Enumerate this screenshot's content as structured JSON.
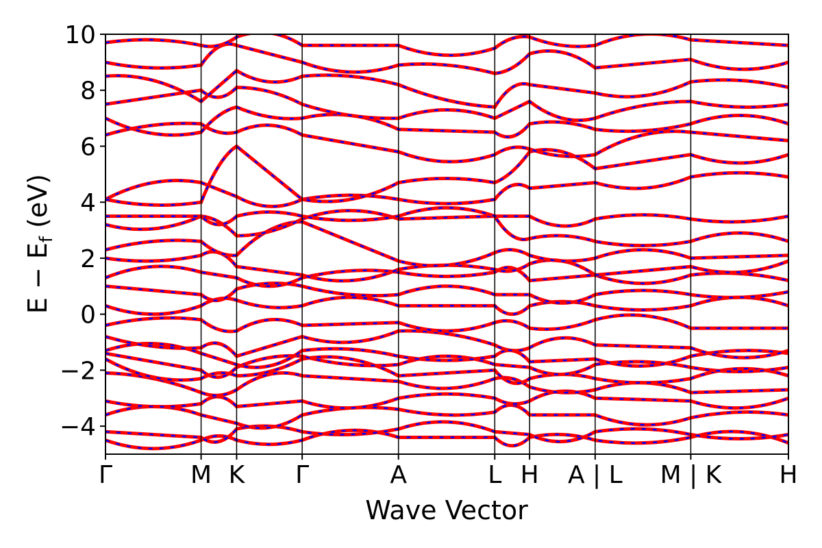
{
  "chart_data": {
    "type": "line",
    "title": "",
    "xlabel": "Wave Vector",
    "ylabel_main": "E − E",
    "ylabel_sub": "f",
    "ylabel_unit": " (eV)",
    "ylim": [
      -5,
      10
    ],
    "yticks": [
      -4,
      -2,
      0,
      2,
      4,
      6,
      8,
      10
    ],
    "ytick_labels": [
      "−4",
      "−2",
      "0",
      "2",
      "4",
      "6",
      "8",
      "10"
    ],
    "xlim": [
      0,
      1
    ],
    "kpoints": [
      {
        "label": "Γ",
        "x": 0.0
      },
      {
        "label": "M",
        "x": 0.14
      },
      {
        "label": "K",
        "x": 0.192
      },
      {
        "label": "Γ",
        "x": 0.288
      },
      {
        "label": "A",
        "x": 0.429
      },
      {
        "label": "L",
        "x": 0.57
      },
      {
        "label": "H",
        "x": 0.621
      },
      {
        "label": "A | L",
        "x": 0.717
      },
      {
        "label": "M | K",
        "x": 0.857
      },
      {
        "label": "H",
        "x": 1.0
      }
    ],
    "colors": {
      "primary": "#ff0000",
      "secondary": "#0000ff",
      "frame": "#000000"
    },
    "series_style": "solid red bands overlaid with dashed blue bands",
    "series": [
      {
        "y": [
          -4.5,
          -4.5,
          -4.5,
          -4.5,
          -4.4,
          -4.4,
          -4.4,
          -4.5,
          -4.4,
          -4.6
        ]
      },
      {
        "y": [
          -4.2,
          -4.4,
          -4.1,
          -4.2,
          -4.1,
          -4.2,
          -4.3,
          -4.2,
          -4.3,
          -4.3
        ]
      },
      {
        "y": [
          -3.6,
          -3.6,
          -3.9,
          -3.6,
          -3.4,
          -3.5,
          -3.6,
          -3.6,
          -3.7,
          -3.6
        ]
      },
      {
        "y": [
          -3.1,
          -3.2,
          -3.3,
          -3.1,
          -3.0,
          -3.0,
          -3.1,
          -3.0,
          -3.1,
          -3.0
        ]
      },
      {
        "y": [
          -2.1,
          -2.8,
          -2.7,
          -2.2,
          -2.4,
          -2.3,
          -2.6,
          -2.7,
          -2.8,
          -2.7
        ]
      },
      {
        "y": [
          -1.6,
          -2.3,
          -2.2,
          -1.6,
          -2.2,
          -2.0,
          -2.3,
          -2.3,
          -2.3,
          -2.2
        ]
      },
      {
        "y": [
          -1.4,
          -2.0,
          -1.9,
          -1.5,
          -1.8,
          -1.8,
          -1.9,
          -1.8,
          -1.9,
          -1.9
        ]
      },
      {
        "y": [
          -1.3,
          -1.4,
          -1.8,
          -1.3,
          -1.5,
          -1.5,
          -1.7,
          -1.6,
          -1.5,
          -1.4
        ]
      },
      {
        "y": [
          -0.8,
          -1.2,
          -1.5,
          -0.8,
          -0.6,
          -1.1,
          -1.2,
          -1.1,
          -1.2,
          -1.3
        ]
      },
      {
        "y": [
          -0.4,
          -0.2,
          -0.6,
          -0.4,
          -0.3,
          -0.3,
          -0.5,
          -0.2,
          -0.5,
          -0.5
        ]
      },
      {
        "y": [
          0.3,
          0.3,
          0.5,
          0.3,
          0.3,
          0.3,
          0.3,
          0.3,
          0.3,
          0.3
        ]
      },
      {
        "y": [
          1.0,
          0.7,
          0.9,
          1.0,
          0.7,
          0.7,
          0.7,
          0.7,
          0.7,
          0.8
        ]
      },
      {
        "y": [
          1.3,
          1.5,
          1.3,
          1.3,
          1.5,
          1.5,
          1.2,
          1.4,
          1.4,
          1.2
        ]
      },
      {
        "y": [
          2.0,
          2.1,
          1.7,
          1.4,
          1.6,
          1.6,
          1.8,
          1.4,
          1.7,
          1.9
        ]
      },
      {
        "y": [
          2.3,
          2.6,
          2.1,
          3.3,
          1.9,
          2.2,
          2.1,
          2.0,
          2.0,
          2.1
        ]
      },
      {
        "y": [
          3.2,
          3.5,
          2.8,
          3.4,
          3.4,
          3.5,
          2.7,
          2.6,
          2.6,
          2.6
        ]
      },
      {
        "y": [
          3.5,
          3.5,
          3.5,
          3.5,
          3.5,
          3.5,
          3.5,
          3.4,
          3.4,
          3.5
        ]
      },
      {
        "y": [
          4.1,
          4.7,
          4.2,
          4.1,
          4.1,
          4.1,
          4.5,
          4.7,
          4.9,
          4.9
        ]
      },
      {
        "y": [
          4.1,
          4.0,
          6.0,
          4.1,
          4.7,
          4.7,
          5.8,
          5.2,
          5.7,
          5.7
        ]
      },
      {
        "y": [
          6.4,
          6.8,
          6.5,
          6.4,
          5.8,
          5.7,
          5.9,
          5.7,
          6.5,
          6.2
        ]
      },
      {
        "y": [
          7.0,
          6.5,
          7.4,
          7.0,
          6.6,
          6.5,
          6.8,
          6.6,
          6.8,
          6.8
        ]
      },
      {
        "y": [
          7.5,
          8.0,
          8.1,
          7.5,
          7.0,
          7.0,
          7.6,
          7.0,
          7.6,
          7.5
        ]
      },
      {
        "y": [
          8.5,
          7.6,
          8.7,
          8.5,
          8.2,
          7.4,
          8.2,
          7.9,
          8.3,
          8.1
        ]
      },
      {
        "y": [
          9.0,
          8.9,
          9.6,
          9.0,
          8.9,
          8.6,
          9.3,
          8.8,
          9.1,
          9.0
        ]
      },
      {
        "y": [
          9.7,
          9.6,
          9.9,
          9.6,
          9.6,
          9.5,
          9.9,
          9.6,
          9.8,
          9.6
        ]
      }
    ]
  }
}
